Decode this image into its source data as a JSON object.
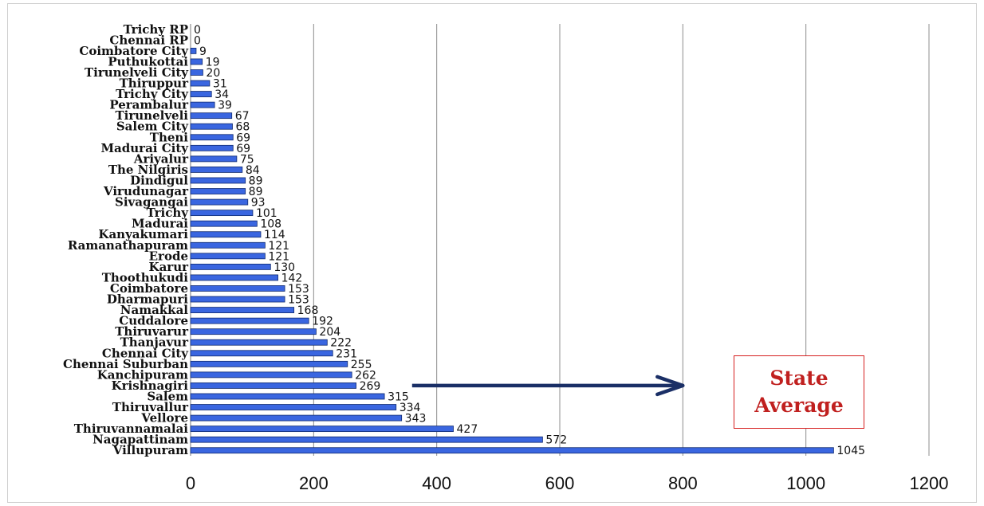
{
  "chart_data": {
    "type": "bar",
    "orientation": "horizontal",
    "title": "",
    "xlabel": "",
    "ylabel": "",
    "xlim": [
      0,
      1200
    ],
    "x_ticks": [
      0,
      200,
      400,
      600,
      800,
      1000,
      1200
    ],
    "grid": "vertical",
    "legend": "none",
    "bar_color": "#3a66e0",
    "bar_edge_color": "#102a70",
    "categories": [
      "Trichy RP",
      "Chennai RP",
      "Coimbatore City",
      "Puthukottai",
      "Tirunelveli City",
      "Thiruppur",
      "Trichy City",
      "Perambalur",
      "Tirunelveli",
      "Salem City",
      "Theni",
      "Madurai City",
      "Ariyalur",
      "The Nilgiris",
      "Dindigul",
      "Virudunagar",
      "Sivagangai",
      "Trichy",
      "Madurai",
      "Kanyakumari",
      "Ramanathapuram",
      "Erode",
      "Karur",
      "Thoothukudi",
      "Coimbatore",
      "Dharmapuri",
      "Namakkal",
      "Cuddalore",
      "Thiruvarur",
      "Thanjavur",
      "Chennai City",
      "Chennai Suburban",
      "Kanchipuram",
      "Krishnagiri",
      "Salem",
      "Thiruvallur",
      "Vellore",
      "Thiruvannamalai",
      "Nagapattinam",
      "Villupuram"
    ],
    "values": [
      0,
      0,
      9,
      19,
      20,
      31,
      34,
      39,
      67,
      68,
      69,
      69,
      75,
      84,
      89,
      89,
      93,
      101,
      108,
      114,
      121,
      121,
      130,
      142,
      153,
      153,
      168,
      192,
      204,
      222,
      231,
      255,
      262,
      269,
      315,
      334,
      343,
      427,
      572,
      1045
    ],
    "value_labels": [
      "0",
      "0",
      "9",
      "19",
      "20",
      "31",
      "34",
      "39",
      "67",
      "68",
      "69",
      "69",
      "75",
      "84",
      "89",
      "89",
      "93",
      "101",
      "108",
      "114",
      "121",
      "121",
      "130",
      "142",
      "153",
      "153",
      "168",
      "192",
      "204",
      "222",
      "231",
      "255",
      "262",
      "269",
      "315",
      "334",
      "343",
      "427",
      "572",
      "1045"
    ],
    "annotation": {
      "text": "State\nAverage",
      "color": "#c0201f",
      "arrow_color": "#1a2f66",
      "arrow_from_value": 360,
      "arrow_to_value": 800,
      "arrow_at_category": "Krishnagiri"
    }
  }
}
